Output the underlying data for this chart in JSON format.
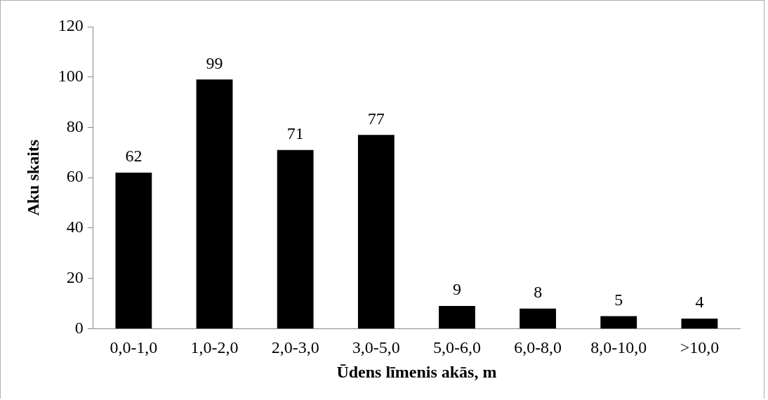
{
  "chart_data": {
    "type": "bar",
    "xlabel": "Ūdens līmenis akās, m",
    "ylabel": "Aku skaits",
    "categories": [
      "0,0-1,0",
      "1,0-2,0",
      "2,0-3,0",
      "3,0-5,0",
      "5,0-6,0",
      "6,0-8,0",
      "8,0-10,0",
      ">10,0"
    ],
    "values": [
      62,
      99,
      71,
      77,
      9,
      8,
      5,
      4
    ],
    "color": "#000000",
    "ylim": [
      0,
      120
    ],
    "yticks": [
      0,
      20,
      40,
      60,
      80,
      100,
      120
    ],
    "data_labels": true,
    "grid": false,
    "legend": false
  }
}
